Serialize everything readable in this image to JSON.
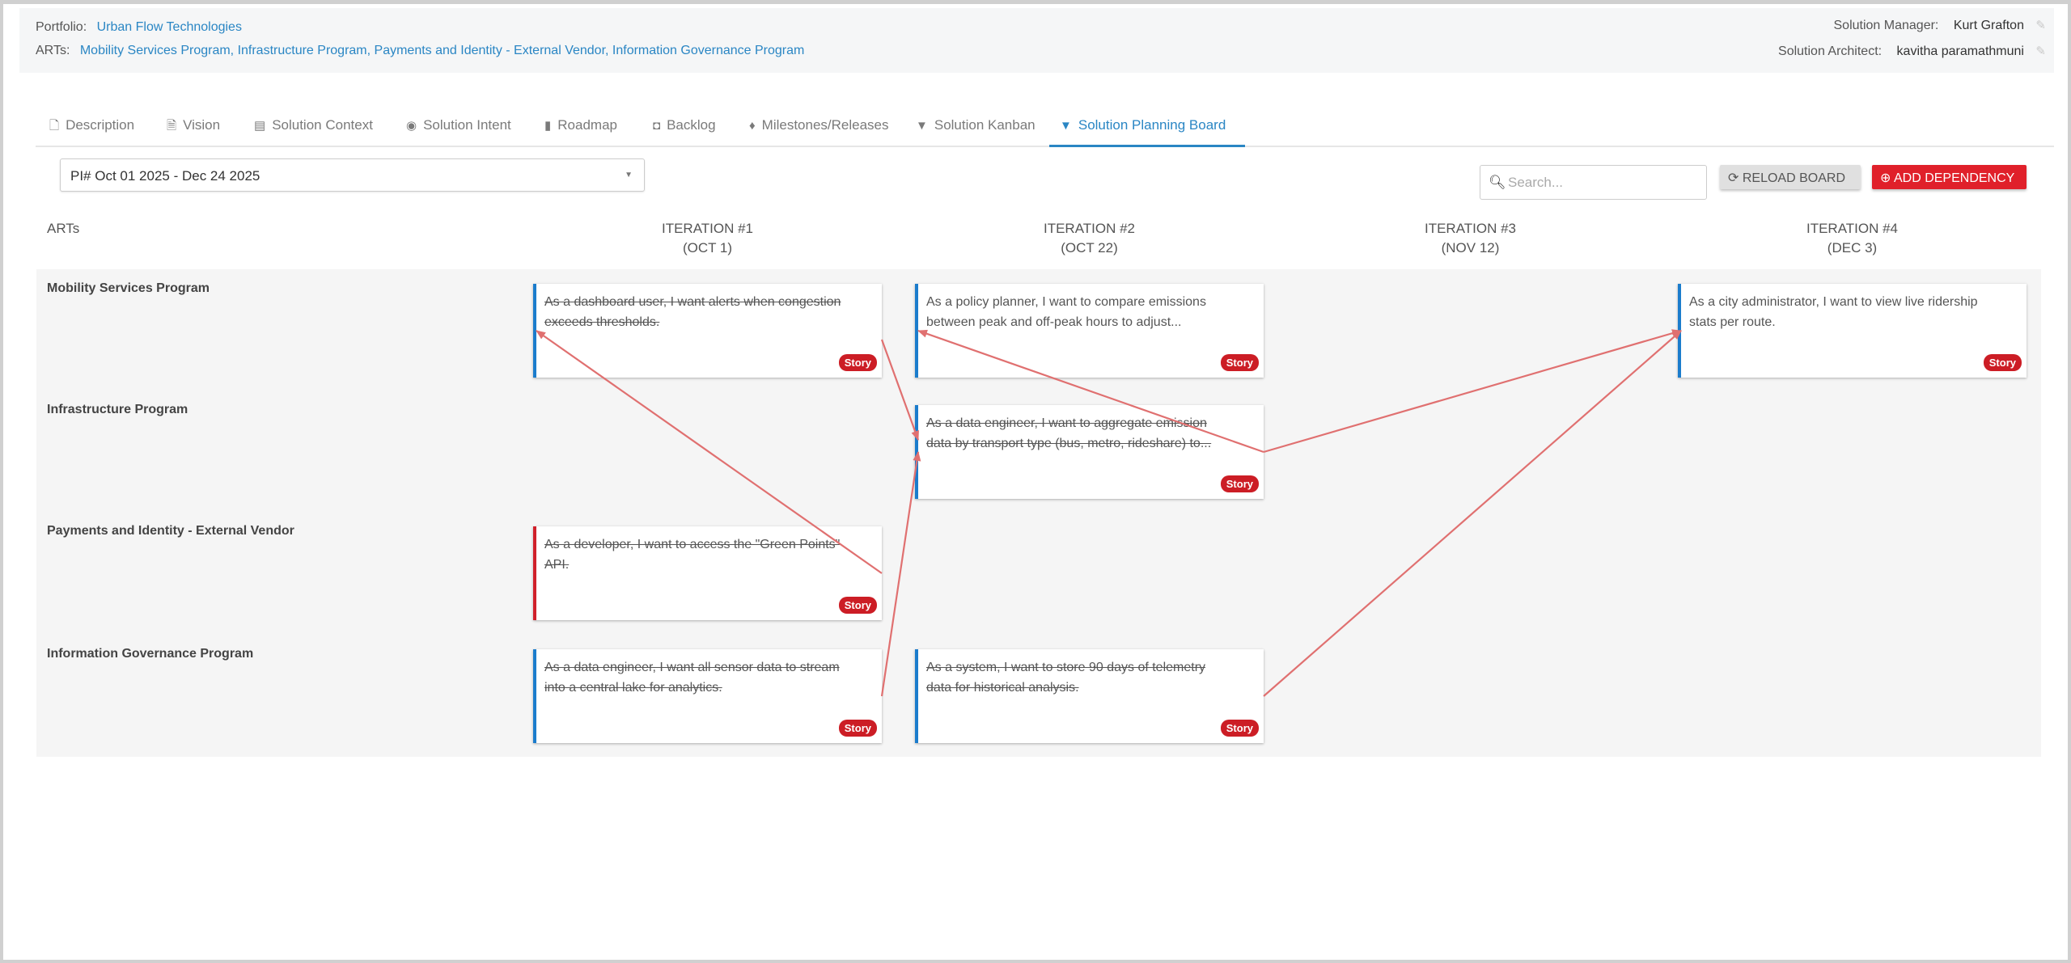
{
  "header": {
    "portfolio_label": "Portfolio:",
    "portfolio_value": "Urban Flow Technologies",
    "arts_label": "ARTs:",
    "arts": [
      "Mobility Services Program",
      "Infrastructure Program",
      "Payments and Identity - External Vendor",
      "Information Governance Program"
    ],
    "solution_manager_label": "Solution Manager:",
    "solution_manager": "Kurt Grafton",
    "solution_architect_label": "Solution Architect:",
    "solution_architect": "kavitha paramathmuni"
  },
  "tabs": [
    {
      "label": "Description",
      "icon": "file-icon",
      "glyph": "🗋"
    },
    {
      "label": "Vision",
      "icon": "file-text-icon",
      "glyph": "🗎"
    },
    {
      "label": "Solution Context",
      "icon": "list-icon",
      "glyph": "▤"
    },
    {
      "label": "Solution Intent",
      "icon": "target-icon",
      "glyph": "◉"
    },
    {
      "label": "Roadmap",
      "icon": "map-icon",
      "glyph": "▮"
    },
    {
      "label": "Backlog",
      "icon": "inbox-icon",
      "glyph": "◘"
    },
    {
      "label": "Milestones/Releases",
      "icon": "diamond-icon",
      "glyph": "♦"
    },
    {
      "label": "Solution Kanban",
      "icon": "filter-icon",
      "glyph": "▼"
    },
    {
      "label": "Solution Planning Board",
      "icon": "filter-icon",
      "glyph": "▼",
      "active": true
    }
  ],
  "toolbar": {
    "pi_select": "PI# Oct 01 2025 - Dec 24 2025",
    "search_placeholder": "Search...",
    "reload_label": "RELOAD BOARD",
    "add_dependency_label": "ADD DEPENDENCY"
  },
  "board": {
    "arts_header": "ARTs",
    "iterations": [
      {
        "name": "ITERATION #1",
        "date": "(OCT 1)"
      },
      {
        "name": "ITERATION #2",
        "date": "(OCT 22)"
      },
      {
        "name": "ITERATION #3",
        "date": "(NOV 12)"
      },
      {
        "name": "ITERATION #4",
        "date": "(DEC 3)"
      }
    ],
    "rows": [
      "Mobility Services Program",
      "Infrastructure Program",
      "Payments and Identity - External Vendor",
      "Information Governance Program"
    ],
    "cards": [
      {
        "id": "c1",
        "row": 0,
        "iteration": 0,
        "text": "As a dashboard user, I want alerts when congestion exceeds thresholds.",
        "badge": "Story",
        "done": true,
        "accent": "#1b7ccc"
      },
      {
        "id": "c2",
        "row": 0,
        "iteration": 1,
        "text": "As a policy planner, I want to compare emissions between peak and off-peak hours to adjust...",
        "badge": "Story",
        "done": false,
        "accent": "#1b7ccc"
      },
      {
        "id": "c3",
        "row": 0,
        "iteration": 3,
        "text": "As a city administrator, I want to view live ridership stats per route.",
        "badge": "Story",
        "done": false,
        "accent": "#1b7ccc"
      },
      {
        "id": "c4",
        "row": 1,
        "iteration": 1,
        "text": "As a data engineer, I want to aggregate emission data by transport type (bus, metro, rideshare) to...",
        "badge": "Story",
        "done": true,
        "accent": "#1b7ccc"
      },
      {
        "id": "c5",
        "row": 2,
        "iteration": 0,
        "text": "As a developer, I want to access the \"Green Points\" API.",
        "badge": "Story",
        "done": true,
        "accent": "#d0202a"
      },
      {
        "id": "c6",
        "row": 3,
        "iteration": 0,
        "text": "As a data engineer, I want all sensor data to stream into a central lake for analytics.",
        "badge": "Story",
        "done": true,
        "accent": "#1b7ccc"
      },
      {
        "id": "c7",
        "row": 3,
        "iteration": 1,
        "text": "As a system, I want to store 90 days of telemetry data for historical analysis.",
        "badge": "Story",
        "done": true,
        "accent": "#1b7ccc"
      }
    ],
    "dependencies": [
      {
        "from": "c5",
        "to": "c1"
      },
      {
        "from": "c1",
        "to": "c4"
      },
      {
        "from": "c6",
        "to": "c4"
      },
      {
        "from": "c4",
        "to": "c2"
      },
      {
        "from": "c4",
        "to": "c3"
      },
      {
        "from": "c7",
        "to": "c3"
      }
    ],
    "arrow_color": "#e07070"
  }
}
